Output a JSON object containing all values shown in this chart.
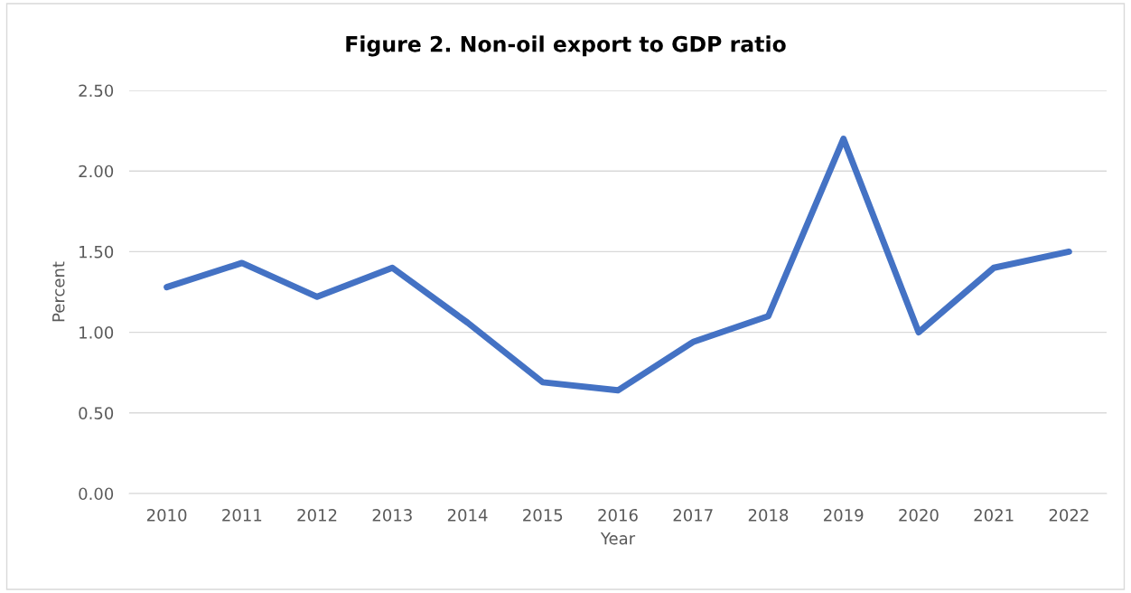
{
  "chart_data": {
    "type": "line",
    "title": "Figure 2. Non-oil export to GDP ratio",
    "xlabel": "Year",
    "ylabel": "Percent",
    "categories": [
      "2010",
      "2011",
      "2012",
      "2013",
      "2014",
      "2015",
      "2016",
      "2017",
      "2018",
      "2019",
      "2020",
      "2021",
      "2022"
    ],
    "series": [
      {
        "color": "#4472c4",
        "values": [
          1.28,
          1.43,
          1.22,
          1.4,
          1.06,
          0.69,
          0.64,
          0.94,
          1.1,
          2.2,
          1.0,
          1.4,
          1.5
        ]
      }
    ],
    "ylim": [
      0,
      2.5
    ],
    "yticks": [
      {
        "value": 0,
        "label": "0.00"
      },
      {
        "value": 0.5,
        "label": "0.50"
      },
      {
        "value": 1,
        "label": "1.00"
      },
      {
        "value": 1.5,
        "label": "1.50"
      },
      {
        "value": 2,
        "label": "2.00"
      },
      {
        "value": 2.5,
        "label": "2.50"
      }
    ],
    "grid": "y",
    "marker": "none",
    "line_style": "solid"
  }
}
